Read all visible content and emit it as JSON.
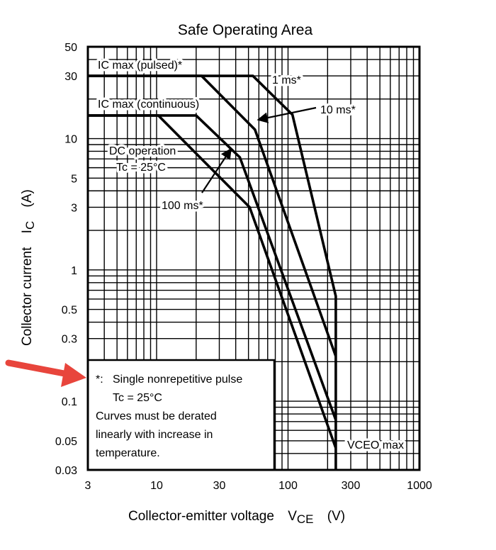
{
  "chart_data": {
    "type": "line",
    "title": "Safe Operating Area",
    "xlabel": "Collector-emitter voltage",
    "xlabel_symbol": "V",
    "xlabel_sub": "CE",
    "xlabel_unit": "(V)",
    "ylabel": "Collector current",
    "ylabel_symbol": "I",
    "ylabel_sub": "C",
    "ylabel_unit": "(A)",
    "xscale": "log",
    "yscale": "log",
    "xlim": [
      3,
      1000
    ],
    "ylim": [
      0.03,
      50
    ],
    "grid": true,
    "xticks": [
      3,
      10,
      30,
      100,
      300,
      1000
    ],
    "xtick_labels": [
      "3",
      "10",
      "30",
      "100",
      "300",
      "1000"
    ],
    "yticks": [
      50,
      30,
      10,
      5,
      3,
      1,
      0.5,
      0.3,
      0.1,
      0.05,
      0.03
    ],
    "ytick_labels": [
      "50",
      "30",
      "10",
      "5",
      "3",
      "1",
      "0.5",
      "0.3",
      "0.1",
      "0.05",
      "0.03"
    ],
    "series": [
      {
        "name": "1 ms*",
        "points": [
          [
            3,
            30
          ],
          [
            54,
            30
          ],
          [
            108,
            15.2
          ],
          [
            231,
            0.63
          ],
          [
            231,
            0.03
          ]
        ]
      },
      {
        "name": "10 ms*",
        "points": [
          [
            3,
            30
          ],
          [
            22,
            30
          ],
          [
            56,
            11.7
          ],
          [
            231,
            0.22
          ]
        ]
      },
      {
        "name": "100 ms*",
        "points": [
          [
            3,
            15
          ],
          [
            20,
            15
          ],
          [
            43,
            7.2
          ],
          [
            231,
            0.072
          ]
        ]
      },
      {
        "name": "DC operation",
        "points": [
          [
            3,
            15
          ],
          [
            10.3,
            15
          ],
          [
            51,
            3.0
          ],
          [
            231,
            0.044
          ]
        ]
      }
    ],
    "annotations": {
      "ic_pulsed": "IC max (pulsed)*",
      "ic_continuous": "IC max (continuous)",
      "ms1": "1 ms*",
      "ms10": "10 ms*",
      "ms100": "100 ms*",
      "dc": "DC operation",
      "dc_tc": "Tc = 25°C",
      "vceo": "VCEO max"
    },
    "note": {
      "star": "*:",
      "line1": "Single nonrepetitive pulse",
      "line2": "Tc = 25°C",
      "line3": "Curves must be derated",
      "line4": "linearly with increase in",
      "line5": "temperature."
    },
    "colors": {
      "pointer_arrow": "#e8453c"
    }
  }
}
